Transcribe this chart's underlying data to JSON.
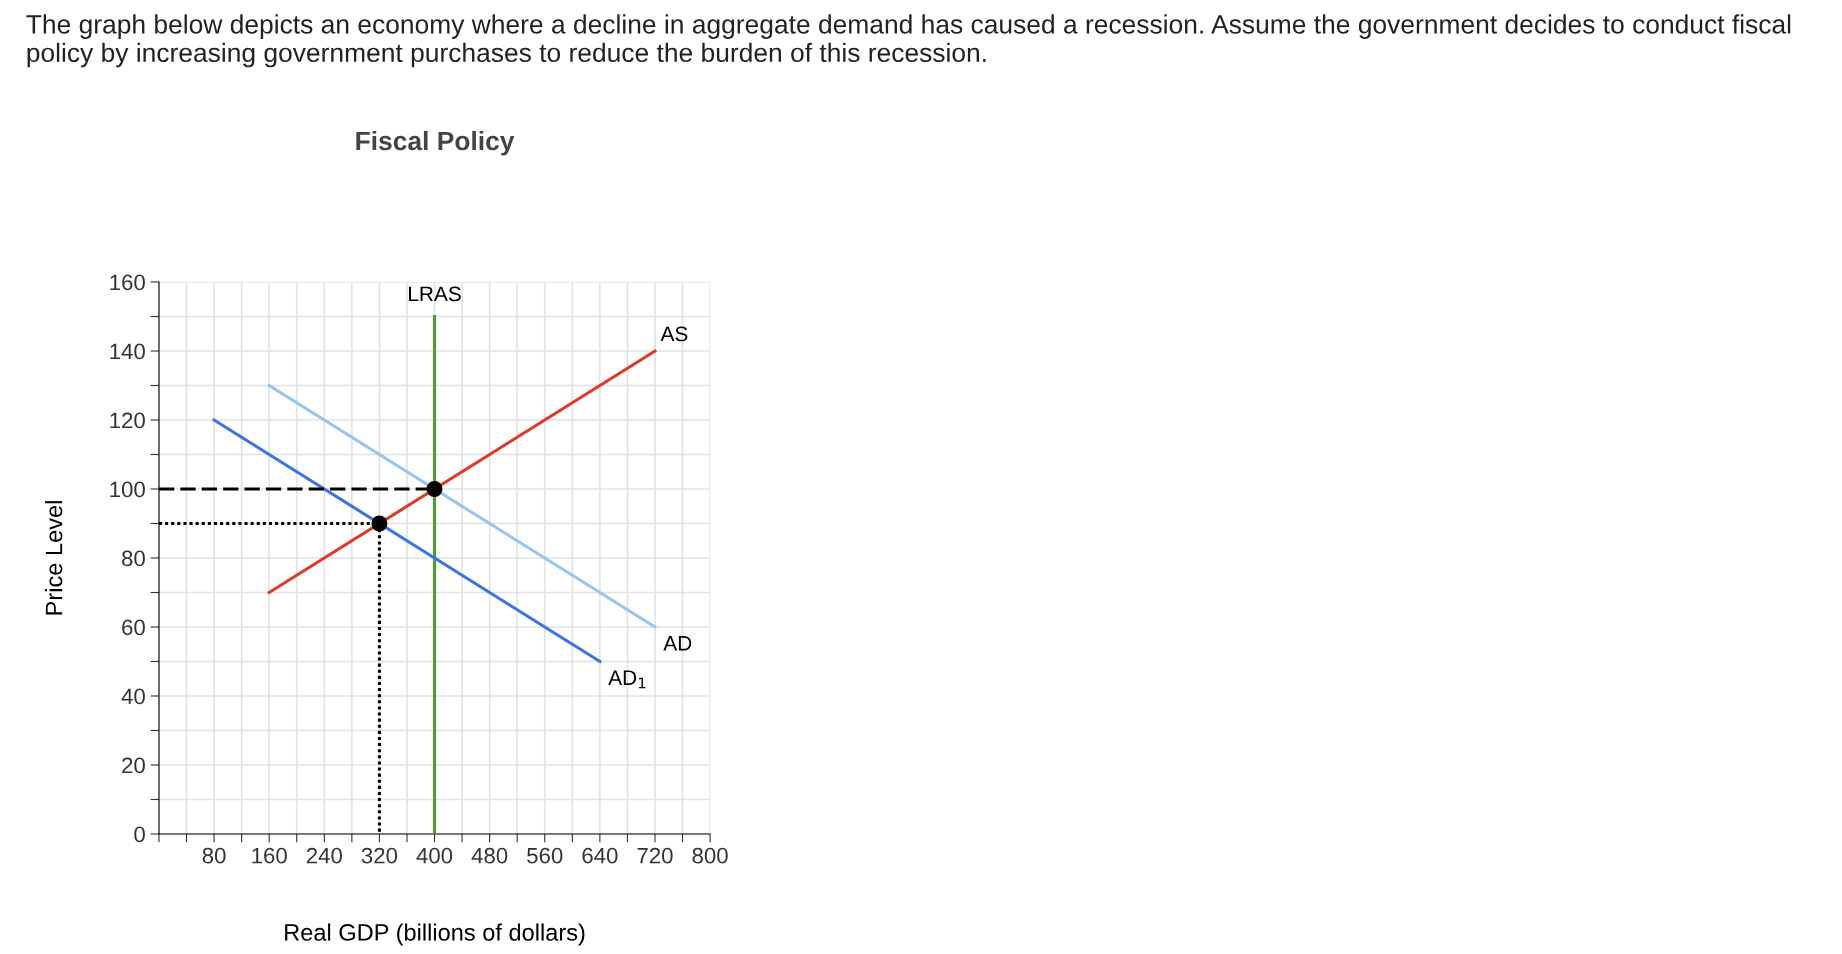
{
  "chart_data": {
    "type": "line",
    "title": "Fiscal Policy",
    "xlabel": "Real GDP (billions of dollars)",
    "ylabel": "Price Level",
    "annotations": [
      "The graph below depicts an economy where a decline in aggregate demand has caused a recession. Assume the government decides to conduct fiscal policy by increasing government purchases to reduce the burden of this recession."
    ],
    "xlim": [
      0,
      800
    ],
    "ylim": [
      0,
      160
    ],
    "xticks": [
      {
        "value": 0,
        "label": null
      },
      {
        "value": 40,
        "label": null
      },
      80,
      {
        "value": 120,
        "label": null
      },
      160,
      {
        "value": 200,
        "label": null
      },
      240,
      {
        "value": 280,
        "label": null
      },
      320,
      {
        "value": 360,
        "label": null
      },
      400,
      {
        "value": 440,
        "label": null
      },
      480,
      {
        "value": 520,
        "label": null
      },
      560,
      {
        "value": 600,
        "label": null
      },
      640,
      {
        "value": 680,
        "label": null
      },
      720,
      {
        "value": 760,
        "label": null
      },
      800
    ],
    "yticks": [
      0,
      {
        "value": 10,
        "label": null
      },
      20,
      {
        "value": 30,
        "label": null
      },
      40,
      {
        "value": 50,
        "label": null
      },
      60,
      {
        "value": 70,
        "label": null
      },
      80,
      {
        "value": 90,
        "label": null
      },
      100,
      {
        "value": 110,
        "label": null
      },
      120,
      {
        "value": 130,
        "label": null
      },
      140,
      {
        "value": 150,
        "label": null
      },
      160
    ],
    "grid": true,
    "legend": false,
    "series": [
      {
        "name": "LRAS",
        "color": "#4aa02c",
        "x": [
          400,
          400
        ],
        "values": [
          0,
          150
        ]
      },
      {
        "name": "AS",
        "color": "#e03a24",
        "x": [
          160,
          720
        ],
        "values": [
          70,
          140
        ]
      },
      {
        "name": "AD",
        "color": "#94c6f2",
        "x": [
          160,
          720
        ],
        "values": [
          130,
          60
        ]
      },
      {
        "name": "AD$_{1}$",
        "color": "#3a75e6",
        "x": [
          80,
          640
        ],
        "values": [
          120,
          50
        ]
      },
      {
        "color": "#000000",
        "x": [
          0,
          400
        ],
        "values": [
          100,
          100
        ],
        "line_style": "dashed"
      },
      {
        "color": "#000000",
        "x": [
          0,
          320,
          320
        ],
        "values": [
          90,
          90,
          0
        ],
        "line_style": "dotted"
      },
      {
        "type": "scatter",
        "color": "#000000",
        "x": [
          320,
          400
        ],
        "values": [
          90,
          100
        ],
        "marker": "circle"
      }
    ]
  }
}
